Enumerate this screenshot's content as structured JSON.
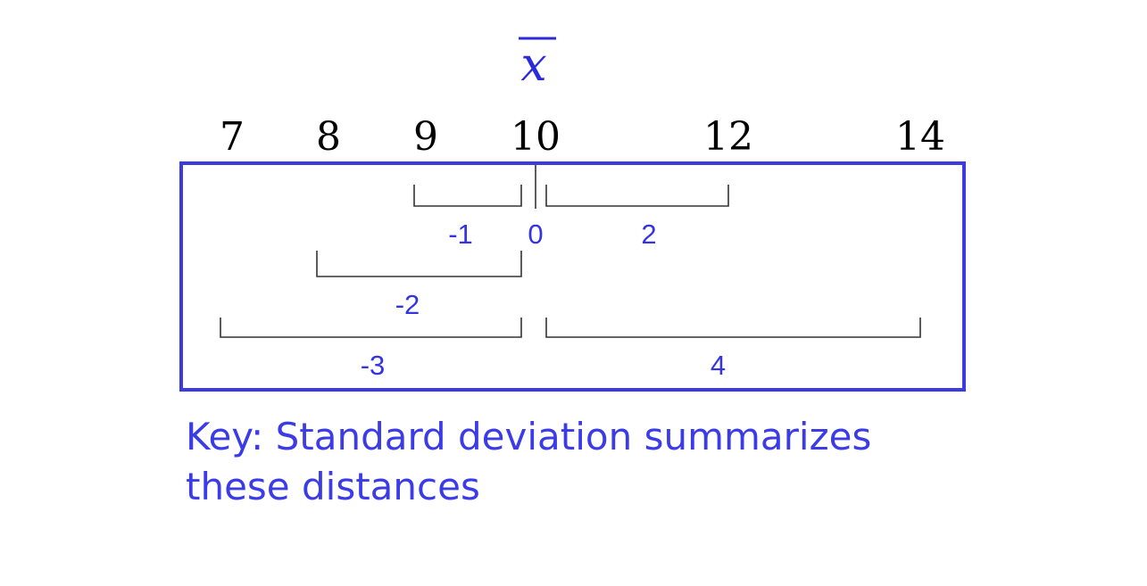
{
  "mean_symbol": "x",
  "number_line": {
    "values": [
      7,
      8,
      9,
      10,
      12,
      14
    ],
    "labels": [
      "7",
      "8",
      "9",
      "10",
      "12",
      "14"
    ],
    "mean_value": 10
  },
  "deviations": [
    {
      "value": 9,
      "deviation": -1,
      "label": "-1",
      "row": 0
    },
    {
      "value": 10,
      "deviation": 0,
      "label": "0",
      "row": 0
    },
    {
      "value": 12,
      "deviation": 2,
      "label": "2",
      "row": 0
    },
    {
      "value": 8,
      "deviation": -2,
      "label": "-2",
      "row": 1
    },
    {
      "value": 7,
      "deviation": -3,
      "label": "-3",
      "row": 2
    },
    {
      "value": 14,
      "deviation": 4,
      "label": "4",
      "row": 2
    }
  ],
  "key": {
    "line1": "Key: Standard deviation summarizes",
    "line2": "these distances"
  },
  "colors": {
    "accent": "#3b3be0",
    "bracket": "#333333",
    "tick_text": "#000000"
  }
}
